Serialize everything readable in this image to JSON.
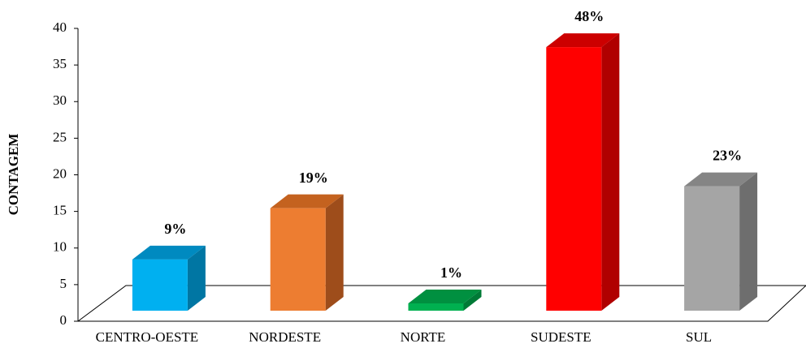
{
  "chart_data": {
    "type": "bar3d",
    "y_label": "CONTAGEM",
    "categories": [
      "CENTRO-OESTE",
      "NORDESTE",
      "NORTE",
      "SUDESTE",
      "SUL"
    ],
    "values": [
      7,
      14,
      1,
      36,
      17
    ],
    "value_labels": [
      "9%",
      "19%",
      "1%",
      "48%",
      "23%"
    ],
    "colors": [
      "#00b0f0",
      "#ed7d31",
      "#00b050",
      "#ff0000",
      "#a5a5a5"
    ],
    "side_colors": [
      "#0076a3",
      "#9e4d1b",
      "#007a36",
      "#b00000",
      "#6e6e6e"
    ],
    "top_colors": [
      "#008ac0",
      "#c4621f",
      "#009040",
      "#cc0000",
      "#858585"
    ],
    "ylim": [
      0,
      40
    ],
    "yticks": [
      0,
      5,
      10,
      15,
      20,
      25,
      30,
      35,
      40
    ]
  }
}
